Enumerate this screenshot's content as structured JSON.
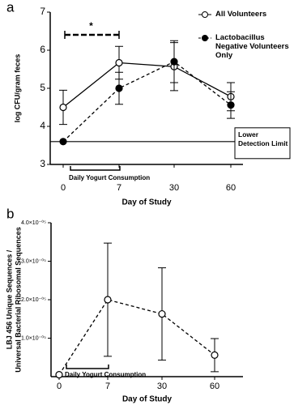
{
  "chart_data": [
    {
      "type": "line",
      "panel_label": "a",
      "xlabel": "Day of Study",
      "ylabel": [
        "log CFU/gram feces"
      ],
      "categories": [
        "0",
        "7",
        "30",
        "60"
      ],
      "ylim": [
        3,
        7
      ],
      "yticks": [
        3,
        4,
        5,
        6,
        7
      ],
      "series": [
        {
          "name": "All Volunteers",
          "color": "#000000",
          "marker": "open",
          "dashed": false,
          "values": [
            4.5,
            5.67,
            5.57,
            4.78
          ],
          "errors": [
            0.45,
            0.43,
            0.63,
            0.37
          ]
        },
        {
          "name": "Lactobacillus Negative Volunteers Only",
          "color": "#000000",
          "marker": "filled",
          "dashed": true,
          "values": [
            3.6,
            5.0,
            5.7,
            4.56
          ],
          "errors": [
            null,
            0.42,
            0.55,
            0.35
          ]
        }
      ],
      "significance_label": "*",
      "bracket_label": "Daily Yogurt Consumption",
      "reference_line": {
        "value": 3.6,
        "label": "Lower Detection Limit"
      }
    },
    {
      "type": "line",
      "panel_label": "b",
      "xlabel": "Day of Study",
      "ylabel": [
        "LBJ 456 Unique Sequences /",
        "Universal Bacterial Ribosomal Sequences"
      ],
      "categories": [
        "0",
        "7",
        "30",
        "60"
      ],
      "ylim": [
        0,
        4e-05
      ],
      "yticks": [
        {
          "value": 1e-05,
          "label": "1.0×10⁻⁰⁵"
        },
        {
          "value": 2e-05,
          "label": "2.0×10⁻⁰⁵"
        },
        {
          "value": 3e-05,
          "label": "3.0×10⁻⁰⁵"
        },
        {
          "value": 4e-05,
          "label": "4.0×10⁻⁰⁵"
        }
      ],
      "series": [
        {
          "name": null,
          "color": "#000000",
          "marker": "open",
          "dashed": true,
          "values": [
            5e-07,
            2e-05,
            1.63e-05,
            5.6e-06
          ],
          "errors": [
            null,
            1.47e-05,
            1.2e-05,
            4.3e-06
          ]
        }
      ],
      "bracket_label": "Daily Yogurt Consumption"
    }
  ]
}
